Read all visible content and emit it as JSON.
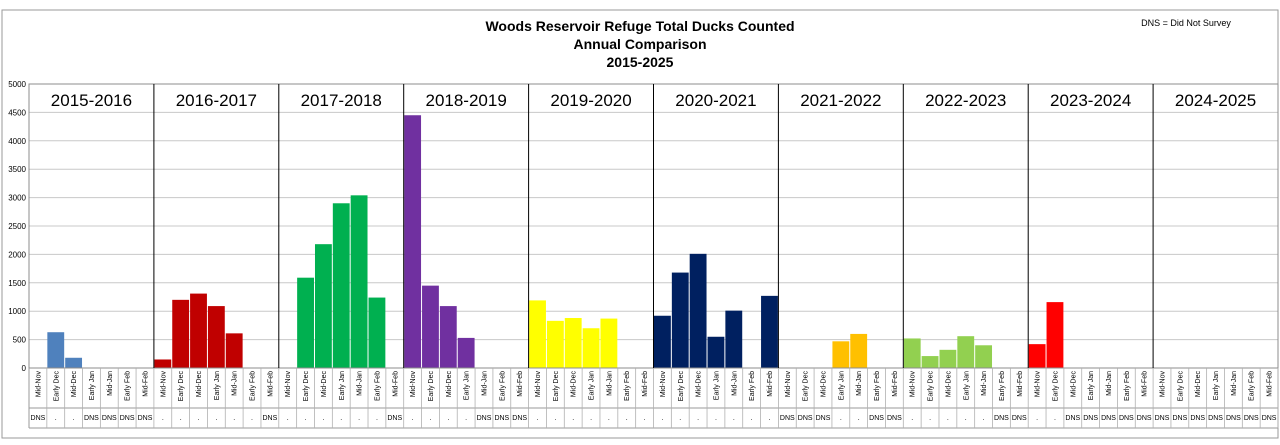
{
  "chart_data": {
    "type": "bar",
    "title_lines": [
      "Woods Reservoir Refuge Total Ducks Counted",
      "Annual Comparison",
      "2015-2025"
    ],
    "note": "DNS = Did Not Survey",
    "ylim": [
      0,
      5000
    ],
    "y_ticks": [
      "0",
      "500",
      "1000",
      "1500",
      "2000",
      "2500",
      "3000",
      "3500",
      "4000",
      "4500",
      "5000"
    ],
    "y_tick_values": [
      0,
      500,
      1000,
      1500,
      2000,
      2500,
      3000,
      3500,
      4000,
      4500,
      5000
    ],
    "period_labels": [
      "Mid-Nov",
      "Early Dec",
      "Mid-Dec",
      "Early Jan",
      "Mid-Jan",
      "Early Feb",
      "Mid-Feb"
    ],
    "grid": true,
    "seasons": [
      {
        "label": "2015-2016",
        "color": "#4f81bd",
        "values": [
          null,
          630,
          180,
          null,
          null,
          null,
          null
        ],
        "status": [
          "DNS",
          ".",
          ".",
          "DNS",
          "DNS",
          "DNS",
          "DNS"
        ]
      },
      {
        "label": "2016-2017",
        "color": "#c00000",
        "values": [
          150,
          1200,
          1310,
          1090,
          610,
          null,
          null
        ],
        "status": [
          ".",
          ".",
          ".",
          ".",
          ".",
          ".",
          "DNS"
        ]
      },
      {
        "label": "2017-2018",
        "color": "#00b050",
        "values": [
          null,
          1590,
          2180,
          2900,
          3040,
          1240,
          null
        ],
        "status": [
          ".",
          ".",
          ".",
          ".",
          ".",
          ".",
          "DNS"
        ]
      },
      {
        "label": "2018-2019",
        "color": "#7030a0",
        "values": [
          4450,
          1450,
          1090,
          530,
          null,
          null,
          null
        ],
        "status": [
          ".",
          ".",
          ".",
          ".",
          "DNS",
          "DNS",
          "DNS"
        ]
      },
      {
        "label": "2019-2020",
        "color": "#ffff00",
        "values": [
          1190,
          830,
          880,
          700,
          870,
          null,
          null
        ],
        "status": [
          ".",
          ".",
          ".",
          ".",
          ".",
          ".",
          "."
        ]
      },
      {
        "label": "2020-2021",
        "color": "#002060",
        "values": [
          920,
          1680,
          2010,
          550,
          1010,
          null,
          1270
        ],
        "status": [
          ".",
          ".",
          ".",
          ".",
          ".",
          ".",
          "."
        ]
      },
      {
        "label": "2021-2022",
        "color": "#ffc000",
        "values": [
          null,
          null,
          null,
          470,
          600,
          null,
          null
        ],
        "status": [
          "DNS",
          "DNS",
          "DNS",
          ".",
          ".",
          "DNS",
          "DNS"
        ]
      },
      {
        "label": "2022-2023",
        "color": "#92d050",
        "values": [
          520,
          210,
          320,
          560,
          400,
          null,
          null
        ],
        "status": [
          ".",
          ".",
          ".",
          ".",
          ".",
          "DNS",
          "DNS"
        ]
      },
      {
        "label": "2023-2024",
        "color": "#ff0000",
        "values": [
          420,
          1160,
          null,
          null,
          null,
          null,
          null
        ],
        "status": [
          ".",
          ".",
          "DNS",
          "DNS",
          "DNS",
          "DNS",
          "DNS"
        ]
      },
      {
        "label": "2024-2025",
        "color": "#4f81bd",
        "values": [
          null,
          null,
          null,
          null,
          null,
          null,
          null
        ],
        "status": [
          "DNS",
          "DNS",
          "DNS",
          "DNS",
          "DNS",
          "DNS",
          "DNS"
        ]
      }
    ]
  }
}
